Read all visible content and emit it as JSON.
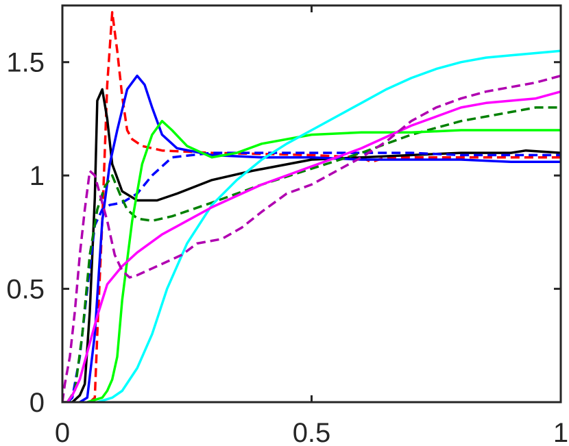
{
  "chart_data": {
    "type": "line",
    "title": "",
    "xlabel": "",
    "ylabel": "",
    "xlim": [
      0,
      1
    ],
    "ylim": [
      0,
      1.75
    ],
    "grid": false,
    "box": true,
    "x_ticks": [
      {
        "value": 0,
        "label": "0"
      },
      {
        "value": 0.5,
        "label": "0.5"
      },
      {
        "value": 1,
        "label": "1"
      }
    ],
    "y_ticks": [
      {
        "value": 0,
        "label": "0"
      },
      {
        "value": 0.5,
        "label": "0.5"
      },
      {
        "value": 1,
        "label": "1"
      },
      {
        "value": 1.5,
        "label": "1.5"
      }
    ],
    "series": [
      {
        "color": "#ff0000",
        "dash": "dashed",
        "points": [
          [
            0.055,
            0
          ],
          [
            0.065,
            0.02
          ],
          [
            0.07,
            0.3
          ],
          [
            0.08,
            0.8
          ],
          [
            0.09,
            1.4
          ],
          [
            0.1,
            1.72
          ],
          [
            0.11,
            1.55
          ],
          [
            0.12,
            1.35
          ],
          [
            0.13,
            1.2
          ],
          [
            0.14,
            1.16
          ],
          [
            0.16,
            1.13
          ],
          [
            0.2,
            1.11
          ],
          [
            0.3,
            1.1
          ],
          [
            0.5,
            1.09
          ],
          [
            0.6,
            1.08
          ],
          [
            0.62,
            1.06
          ],
          [
            0.65,
            1.08
          ],
          [
            0.8,
            1.08
          ],
          [
            1,
            1.08
          ]
        ]
      },
      {
        "color": "#000000",
        "dash": "solid",
        "points": [
          [
            0,
            0
          ],
          [
            0.01,
            0
          ],
          [
            0.02,
            0
          ],
          [
            0.035,
            0.03
          ],
          [
            0.045,
            0.08
          ],
          [
            0.055,
            0.4
          ],
          [
            0.065,
            0.9
          ],
          [
            0.07,
            1.33
          ],
          [
            0.08,
            1.38
          ],
          [
            0.09,
            1.25
          ],
          [
            0.1,
            1.05
          ],
          [
            0.12,
            0.93
          ],
          [
            0.15,
            0.89
          ],
          [
            0.19,
            0.89
          ],
          [
            0.23,
            0.92
          ],
          [
            0.3,
            0.98
          ],
          [
            0.38,
            1.02
          ],
          [
            0.5,
            1.07
          ],
          [
            0.6,
            1.08
          ],
          [
            0.7,
            1.09
          ],
          [
            0.8,
            1.1
          ],
          [
            0.9,
            1.1
          ],
          [
            0.93,
            1.11
          ],
          [
            1,
            1.1
          ]
        ]
      },
      {
        "color": "#0000ff",
        "dash": "solid",
        "points": [
          [
            0.035,
            0
          ],
          [
            0.05,
            0.02
          ],
          [
            0.065,
            0.3
          ],
          [
            0.08,
            0.8
          ],
          [
            0.095,
            1.05
          ],
          [
            0.11,
            1.2
          ],
          [
            0.13,
            1.38
          ],
          [
            0.15,
            1.44
          ],
          [
            0.165,
            1.4
          ],
          [
            0.18,
            1.3
          ],
          [
            0.2,
            1.18
          ],
          [
            0.23,
            1.12
          ],
          [
            0.3,
            1.09
          ],
          [
            0.4,
            1.08
          ],
          [
            0.5,
            1.08
          ],
          [
            0.6,
            1.07
          ],
          [
            0.7,
            1.07
          ],
          [
            0.8,
            1.07
          ],
          [
            0.9,
            1.06
          ],
          [
            1,
            1.06
          ]
        ]
      },
      {
        "color": "#0000ff",
        "dash": "dashed",
        "points": [
          [
            0.01,
            0
          ],
          [
            0.02,
            0.02
          ],
          [
            0.035,
            0.2
          ],
          [
            0.05,
            0.5
          ],
          [
            0.065,
            0.78
          ],
          [
            0.08,
            0.85
          ],
          [
            0.095,
            0.87
          ],
          [
            0.12,
            0.88
          ],
          [
            0.15,
            0.92
          ],
          [
            0.18,
            1
          ],
          [
            0.22,
            1.08
          ],
          [
            0.3,
            1.1
          ],
          [
            0.4,
            1.1
          ],
          [
            0.5,
            1.1
          ],
          [
            0.6,
            1.1
          ],
          [
            0.7,
            1.1
          ],
          [
            0.8,
            1.09
          ],
          [
            0.9,
            1.09
          ],
          [
            1,
            1.09
          ]
        ]
      },
      {
        "color": "#008000",
        "dash": "dashed",
        "points": [
          [
            0.01,
            0
          ],
          [
            0.025,
            0.05
          ],
          [
            0.04,
            0.3
          ],
          [
            0.055,
            0.65
          ],
          [
            0.07,
            0.85
          ],
          [
            0.085,
            0.95
          ],
          [
            0.1,
            1.0
          ],
          [
            0.115,
            0.92
          ],
          [
            0.13,
            0.85
          ],
          [
            0.15,
            0.81
          ],
          [
            0.18,
            0.8
          ],
          [
            0.22,
            0.82
          ],
          [
            0.3,
            0.88
          ],
          [
            0.4,
            0.96
          ],
          [
            0.5,
            1.03
          ],
          [
            0.6,
            1.1
          ],
          [
            0.7,
            1.18
          ],
          [
            0.8,
            1.24
          ],
          [
            0.9,
            1.28
          ],
          [
            0.95,
            1.3
          ],
          [
            1,
            1.3
          ]
        ]
      },
      {
        "color": "#00ff00",
        "dash": "solid",
        "points": [
          [
            0.05,
            0
          ],
          [
            0.08,
            0.02
          ],
          [
            0.09,
            0.05
          ],
          [
            0.1,
            0.1
          ],
          [
            0.11,
            0.2
          ],
          [
            0.12,
            0.45
          ],
          [
            0.14,
            0.8
          ],
          [
            0.16,
            1.05
          ],
          [
            0.18,
            1.18
          ],
          [
            0.2,
            1.24
          ],
          [
            0.22,
            1.2
          ],
          [
            0.25,
            1.13
          ],
          [
            0.3,
            1.08
          ],
          [
            0.35,
            1.1
          ],
          [
            0.4,
            1.14
          ],
          [
            0.5,
            1.18
          ],
          [
            0.6,
            1.19
          ],
          [
            0.7,
            1.19
          ],
          [
            0.8,
            1.2
          ],
          [
            0.9,
            1.2
          ],
          [
            1,
            1.2
          ]
        ]
      },
      {
        "color": "#00ffff",
        "dash": "solid",
        "points": [
          [
            0.07,
            0
          ],
          [
            0.1,
            0.02
          ],
          [
            0.12,
            0.05
          ],
          [
            0.15,
            0.15
          ],
          [
            0.18,
            0.3
          ],
          [
            0.21,
            0.5
          ],
          [
            0.25,
            0.7
          ],
          [
            0.3,
            0.87
          ],
          [
            0.35,
            0.98
          ],
          [
            0.4,
            1.07
          ],
          [
            0.45,
            1.14
          ],
          [
            0.5,
            1.2
          ],
          [
            0.55,
            1.26
          ],
          [
            0.6,
            1.32
          ],
          [
            0.65,
            1.38
          ],
          [
            0.7,
            1.43
          ],
          [
            0.75,
            1.47
          ],
          [
            0.8,
            1.5
          ],
          [
            0.85,
            1.52
          ],
          [
            0.9,
            1.53
          ],
          [
            0.95,
            1.54
          ],
          [
            1,
            1.55
          ]
        ]
      },
      {
        "color": "#ff00ff",
        "dash": "solid",
        "points": [
          [
            0.01,
            0
          ],
          [
            0.02,
            0.03
          ],
          [
            0.035,
            0.1
          ],
          [
            0.05,
            0.22
          ],
          [
            0.07,
            0.38
          ],
          [
            0.09,
            0.52
          ],
          [
            0.12,
            0.6
          ],
          [
            0.15,
            0.66
          ],
          [
            0.2,
            0.74
          ],
          [
            0.25,
            0.8
          ],
          [
            0.3,
            0.86
          ],
          [
            0.35,
            0.91
          ],
          [
            0.4,
            0.96
          ],
          [
            0.45,
            1.0
          ],
          [
            0.5,
            1.04
          ],
          [
            0.55,
            1.08
          ],
          [
            0.6,
            1.12
          ],
          [
            0.65,
            1.17
          ],
          [
            0.7,
            1.22
          ],
          [
            0.75,
            1.26
          ],
          [
            0.8,
            1.3
          ],
          [
            0.85,
            1.32
          ],
          [
            0.9,
            1.33
          ],
          [
            0.95,
            1.34
          ],
          [
            1,
            1.37
          ]
        ]
      },
      {
        "color": "#b000b0",
        "dash": "dashed",
        "points": [
          [
            0,
            0
          ],
          [
            0.005,
            0.08
          ],
          [
            0.015,
            0.2
          ],
          [
            0.025,
            0.4
          ],
          [
            0.035,
            0.65
          ],
          [
            0.045,
            0.85
          ],
          [
            0.055,
            1.02
          ],
          [
            0.065,
            1.0
          ],
          [
            0.075,
            0.92
          ],
          [
            0.09,
            0.8
          ],
          [
            0.105,
            0.65
          ],
          [
            0.12,
            0.58
          ],
          [
            0.135,
            0.55
          ],
          [
            0.15,
            0.56
          ],
          [
            0.18,
            0.59
          ],
          [
            0.21,
            0.62
          ],
          [
            0.24,
            0.65
          ],
          [
            0.27,
            0.7
          ],
          [
            0.32,
            0.72
          ],
          [
            0.36,
            0.77
          ],
          [
            0.4,
            0.84
          ],
          [
            0.45,
            0.92
          ],
          [
            0.5,
            0.96
          ],
          [
            0.55,
            1.02
          ],
          [
            0.6,
            1.08
          ],
          [
            0.65,
            1.15
          ],
          [
            0.7,
            1.24
          ],
          [
            0.75,
            1.3
          ],
          [
            0.8,
            1.34
          ],
          [
            0.85,
            1.37
          ],
          [
            0.9,
            1.39
          ],
          [
            0.95,
            1.41
          ],
          [
            1,
            1.44
          ]
        ]
      }
    ]
  }
}
